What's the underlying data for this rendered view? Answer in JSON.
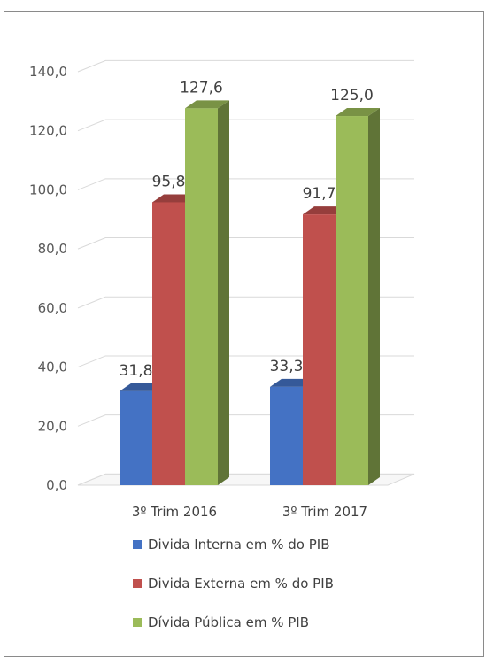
{
  "chart_data": {
    "type": "bar",
    "categories": [
      "3º Trim 2016",
      "3º Trim 2017"
    ],
    "series": [
      {
        "name": "Divida Interna em % do PIB",
        "values": [
          31.8,
          33.3
        ],
        "color": "#4472c4"
      },
      {
        "name": "Divida Externa em % do PIB",
        "values": [
          95.8,
          91.7
        ],
        "color": "#c0504d"
      },
      {
        "name": "Dívida Pública em % PIB",
        "values": [
          127.6,
          125.0
        ],
        "color": "#9bbb59"
      }
    ],
    "data_labels": [
      [
        "31,8",
        "33,3"
      ],
      [
        "95,8",
        "91,7"
      ],
      [
        "127,6",
        "125,0"
      ]
    ],
    "y_ticks": [
      "0,0",
      "20,0",
      "40,0",
      "60,0",
      "80,0",
      "100,0",
      "120,0",
      "140,0"
    ],
    "ylim": [
      0,
      140
    ],
    "grid": true,
    "legend_position": "bottom"
  }
}
